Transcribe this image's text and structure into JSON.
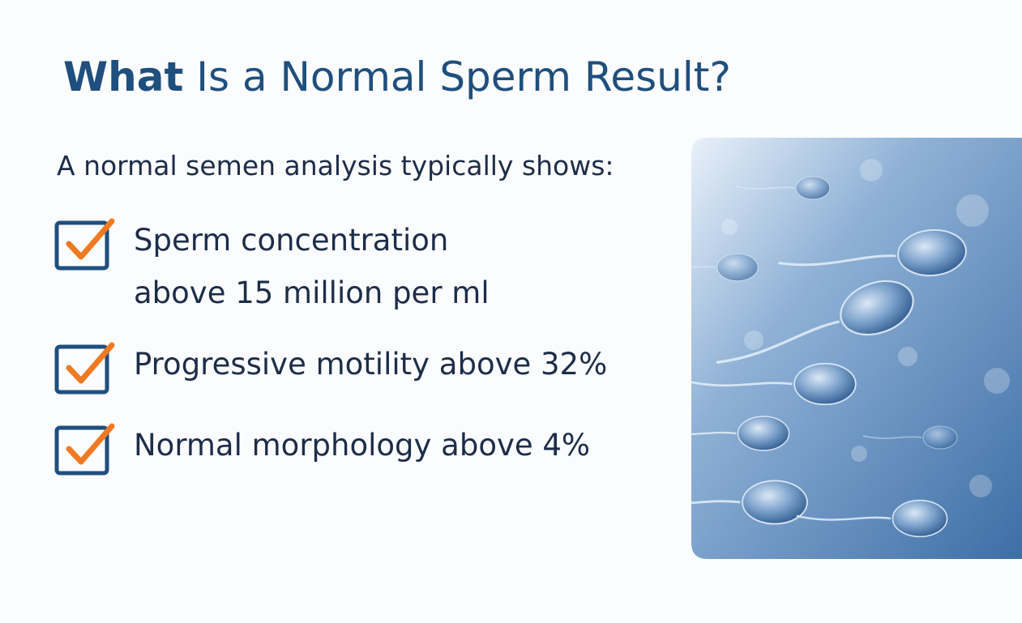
{
  "header": {
    "title_bold": "What",
    "title_rest": "Is a Normal Sperm Result?"
  },
  "intro": "A normal semen analysis typically shows:",
  "checklist": [
    {
      "lines": [
        "Sperm concentration",
        "above 15 million per ml"
      ]
    },
    {
      "lines": [
        "Progressive motility above 32%"
      ]
    },
    {
      "lines": [
        "Normal morphology above 4%"
      ]
    }
  ]
}
